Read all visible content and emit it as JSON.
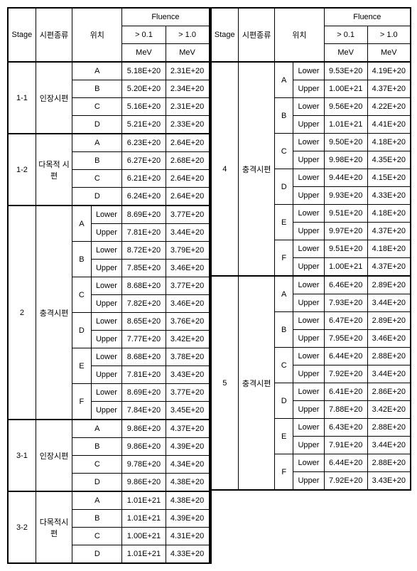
{
  "headers": {
    "stage": "Stage",
    "type": "시편종류",
    "loc": "위치",
    "fluence": "Fluence",
    "gt01": "> 0.1",
    "gt10": "> 1.0",
    "mev": "MeV"
  },
  "left": [
    {
      "stage": "1-1",
      "type": "인장시편",
      "rows": [
        {
          "a": "A",
          "b": "",
          "f1": "5.18E+20",
          "f2": "2.31E+20"
        },
        {
          "a": "B",
          "b": "",
          "f1": "5.20E+20",
          "f2": "2.34E+20"
        },
        {
          "a": "C",
          "b": "",
          "f1": "5.16E+20",
          "f2": "2.31E+20"
        },
        {
          "a": "D",
          "b": "",
          "f1": "5.21E+20",
          "f2": "2.33E+20"
        }
      ]
    },
    {
      "stage": "1-2",
      "type": "다목적\n시편",
      "rows": [
        {
          "a": "A",
          "b": "",
          "f1": "6.23E+20",
          "f2": "2.64E+20"
        },
        {
          "a": "B",
          "b": "",
          "f1": "6.27E+20",
          "f2": "2.68E+20"
        },
        {
          "a": "C",
          "b": "",
          "f1": "6.21E+20",
          "f2": "2.64E+20"
        },
        {
          "a": "D",
          "b": "",
          "f1": "6.24E+20",
          "f2": "2.64E+20"
        }
      ]
    },
    {
      "stage": "2",
      "type": "충격시편",
      "rows": [
        {
          "a": "A",
          "b": "Lower",
          "f1": "8.69E+20",
          "f2": "3.77E+20"
        },
        {
          "a": "",
          "b": "Upper",
          "f1": "7.81E+20",
          "f2": "3.44E+20"
        },
        {
          "a": "B",
          "b": "Lower",
          "f1": "8.72E+20",
          "f2": "3.79E+20"
        },
        {
          "a": "",
          "b": "Upper",
          "f1": "7.85E+20",
          "f2": "3.46E+20"
        },
        {
          "a": "C",
          "b": "Lower",
          "f1": "8.68E+20",
          "f2": "3.77E+20"
        },
        {
          "a": "",
          "b": "Upper",
          "f1": "7.82E+20",
          "f2": "3.46E+20"
        },
        {
          "a": "D",
          "b": "Lower",
          "f1": "8.65E+20",
          "f2": "3.76E+20"
        },
        {
          "a": "",
          "b": "Upper",
          "f1": "7.77E+20",
          "f2": "3.42E+20"
        },
        {
          "a": "E",
          "b": "Lower",
          "f1": "8.68E+20",
          "f2": "3.78E+20"
        },
        {
          "a": "",
          "b": "Upper",
          "f1": "7.81E+20",
          "f2": "3.43E+20"
        },
        {
          "a": "F",
          "b": "Lower",
          "f1": "8.69E+20",
          "f2": "3.77E+20"
        },
        {
          "a": "",
          "b": "Upper",
          "f1": "7.84E+20",
          "f2": "3.45E+20"
        }
      ]
    },
    {
      "stage": "3-1",
      "type": "인장시편",
      "rows": [
        {
          "a": "A",
          "b": "",
          "f1": "9.86E+20",
          "f2": "4.37E+20"
        },
        {
          "a": "B",
          "b": "",
          "f1": "9.86E+20",
          "f2": "4.39E+20"
        },
        {
          "a": "C",
          "b": "",
          "f1": "9.78E+20",
          "f2": "4.34E+20"
        },
        {
          "a": "D",
          "b": "",
          "f1": "9.86E+20",
          "f2": "4.38E+20"
        }
      ]
    },
    {
      "stage": "3-2",
      "type": "다목적시\n편",
      "rows": [
        {
          "a": "A",
          "b": "",
          "f1": "1.01E+21",
          "f2": "4.38E+20"
        },
        {
          "a": "B",
          "b": "",
          "f1": "1.01E+21",
          "f2": "4.39E+20"
        },
        {
          "a": "C",
          "b": "",
          "f1": "1.00E+21",
          "f2": "4.31E+20"
        },
        {
          "a": "D",
          "b": "",
          "f1": "1.01E+21",
          "f2": "4.33E+20"
        }
      ]
    }
  ],
  "right": [
    {
      "stage": "4",
      "type": "충격시편",
      "rows": [
        {
          "a": "A",
          "b": "Lower",
          "f1": "9.53E+20",
          "f2": "4.19E+20"
        },
        {
          "a": "",
          "b": "Upper",
          "f1": "1.00E+21",
          "f2": "4.37E+20"
        },
        {
          "a": "B",
          "b": "Lower",
          "f1": "9.56E+20",
          "f2": "4.22E+20"
        },
        {
          "a": "",
          "b": "Upper",
          "f1": "1.01E+21",
          "f2": "4.41E+20"
        },
        {
          "a": "C",
          "b": "Lower",
          "f1": "9.50E+20",
          "f2": "4.18E+20"
        },
        {
          "a": "",
          "b": "Upper",
          "f1": "9.98E+20",
          "f2": "4.35E+20"
        },
        {
          "a": "D",
          "b": "Lower",
          "f1": "9.44E+20",
          "f2": "4.15E+20"
        },
        {
          "a": "",
          "b": "Upper",
          "f1": "9.93E+20",
          "f2": "4.33E+20"
        },
        {
          "a": "E",
          "b": "Lower",
          "f1": "9.51E+20",
          "f2": "4.18E+20"
        },
        {
          "a": "",
          "b": "Upper",
          "f1": "9.97E+20",
          "f2": "4.37E+20"
        },
        {
          "a": "F",
          "b": "Lower",
          "f1": "9.51E+20",
          "f2": "4.18E+20"
        },
        {
          "a": "",
          "b": "Upper",
          "f1": "1.00E+21",
          "f2": "4.37E+20"
        }
      ]
    },
    {
      "stage": "5",
      "type": "충격시편",
      "rows": [
        {
          "a": "A",
          "b": "Lower",
          "f1": "6.46E+20",
          "f2": "2.89E+20"
        },
        {
          "a": "",
          "b": "Upper",
          "f1": "7.93E+20",
          "f2": "3.44E+20"
        },
        {
          "a": "B",
          "b": "Lower",
          "f1": "6.47E+20",
          "f2": "2.89E+20"
        },
        {
          "a": "",
          "b": "Upper",
          "f1": "7.95E+20",
          "f2": "3.46E+20"
        },
        {
          "a": "C",
          "b": "Lower",
          "f1": "6.44E+20",
          "f2": "2.88E+20"
        },
        {
          "a": "",
          "b": "Upper",
          "f1": "7.92E+20",
          "f2": "3.44E+20"
        },
        {
          "a": "D",
          "b": "Lower",
          "f1": "6.41E+20",
          "f2": "2.86E+20"
        },
        {
          "a": "",
          "b": "Upper",
          "f1": "7.88E+20",
          "f2": "3.42E+20"
        },
        {
          "a": "E",
          "b": "Lower",
          "f1": "6.43E+20",
          "f2": "2.88E+20"
        },
        {
          "a": "",
          "b": "Upper",
          "f1": "7.91E+20",
          "f2": "3.44E+20"
        },
        {
          "a": "F",
          "b": "Lower",
          "f1": "6.44E+20",
          "f2": "2.88E+20"
        },
        {
          "a": "",
          "b": "Upper",
          "f1": "7.92E+20",
          "f2": "3.43E+20"
        }
      ]
    }
  ]
}
